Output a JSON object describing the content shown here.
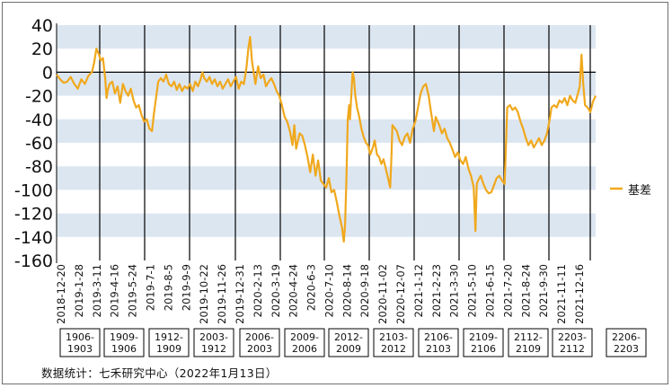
{
  "chart_data": {
    "type": "line",
    "title": "",
    "xlabel": "",
    "ylabel": "",
    "ylim": [
      -160,
      40
    ],
    "y_ticks": [
      40,
      20,
      0,
      -20,
      -40,
      -60,
      -80,
      -100,
      -120,
      -140,
      -160
    ],
    "grid": "alternating horizontal bands",
    "legend_position": "right",
    "colors": {
      "line": "#F0A81C",
      "band": "#DCE6F1",
      "divider": "#000000"
    },
    "x_tick_labels": [
      "2018-12-20",
      "2019-1-28",
      "2019-3-11",
      "2019-4-16",
      "2019-5-24",
      "2019-7-1",
      "2019-8-5",
      "2019-9-9",
      "2019-10-22",
      "2019-11-26",
      "2019-12-31",
      "2020-2-13",
      "2020-3-19",
      "2020-4-24",
      "2020-6-3",
      "2020-7-10",
      "2020-8-14",
      "2020-9-18",
      "2020-11-02",
      "2020-12-07",
      "2021-1-12",
      "2021-2-23",
      "2021-3-30",
      "2021-5-10",
      "2021-6-15",
      "2021-7-20",
      "2021-8-24",
      "2021-9-30",
      "2021-11-11",
      "2021-12-16"
    ],
    "contract_labels": [
      [
        "1906-",
        "1903"
      ],
      [
        "1909-",
        "1906"
      ],
      [
        "1912-",
        "1909"
      ],
      [
        "2003-",
        "1912"
      ],
      [
        "2006-",
        "2003"
      ],
      [
        "2009-",
        "2006"
      ],
      [
        "2012-",
        "2009"
      ],
      [
        "2103-",
        "2012"
      ],
      [
        "2106-",
        "2103"
      ],
      [
        "2109-",
        "2106"
      ],
      [
        "2112-",
        "2109"
      ],
      [
        "2203-",
        "2112"
      ],
      [
        "2206-",
        "2203"
      ]
    ],
    "series": [
      {
        "name": "基差",
        "color": "#F0A81C",
        "points": [
          [
            0,
            -2
          ],
          [
            0.8,
            -6
          ],
          [
            1.6,
            -9
          ],
          [
            2.4,
            -8
          ],
          [
            3.2,
            -4
          ],
          [
            4.0,
            -10
          ],
          [
            4.8,
            -14
          ],
          [
            5.6,
            -6
          ],
          [
            6.4,
            -10
          ],
          [
            7.2,
            -3
          ],
          [
            8.0,
            0
          ],
          [
            8.5,
            8
          ],
          [
            9.0,
            20
          ],
          [
            9.5,
            16
          ],
          [
            10.0,
            10
          ],
          [
            10.5,
            12
          ],
          [
            11.0,
            -5
          ],
          [
            11.3,
            -22
          ],
          [
            11.6,
            -15
          ],
          [
            12,
            -10
          ],
          [
            12.6,
            -8
          ],
          [
            13.2,
            -18
          ],
          [
            13.8,
            -12
          ],
          [
            14.4,
            -26
          ],
          [
            15.0,
            -10
          ],
          [
            15.6,
            -16
          ],
          [
            16.2,
            -20
          ],
          [
            16.8,
            -14
          ],
          [
            17.4,
            -24
          ],
          [
            18.0,
            -30
          ],
          [
            18.6,
            -28
          ],
          [
            19.2,
            -36
          ],
          [
            19.8,
            -42
          ],
          [
            20.4,
            -40
          ],
          [
            21.0,
            -48
          ],
          [
            21.6,
            -50
          ],
          [
            22.0,
            -36
          ],
          [
            23.0,
            -8
          ],
          [
            23.6,
            -5
          ],
          [
            24.2,
            -8
          ],
          [
            24.8,
            -2
          ],
          [
            25.4,
            -10
          ],
          [
            26.0,
            -12
          ],
          [
            26.6,
            -8
          ],
          [
            27.2,
            -15
          ],
          [
            27.8,
            -10
          ],
          [
            28.4,
            -16
          ],
          [
            29.0,
            -12
          ],
          [
            29.6,
            -14
          ],
          [
            30.2,
            -10
          ],
          [
            30.8,
            -16
          ],
          [
            31.4,
            -8
          ],
          [
            32.0,
            -12
          ],
          [
            32.6,
            -6
          ],
          [
            33.0,
            0
          ],
          [
            33.4,
            -5
          ],
          [
            34.0,
            -8
          ],
          [
            34.6,
            -4
          ],
          [
            35.2,
            -10
          ],
          [
            35.8,
            -6
          ],
          [
            36.4,
            -12
          ],
          [
            37.0,
            -8
          ],
          [
            37.6,
            -14
          ],
          [
            38.2,
            -10
          ],
          [
            38.8,
            -6
          ],
          [
            39.4,
            -12
          ],
          [
            40.0,
            -8
          ],
          [
            40.6,
            -4
          ],
          [
            41.2,
            -14
          ],
          [
            41.8,
            -8
          ],
          [
            42.4,
            -10
          ],
          [
            43.0,
            5
          ],
          [
            43.4,
            20
          ],
          [
            43.8,
            30
          ],
          [
            44.2,
            10
          ],
          [
            44.6,
            0
          ],
          [
            45.0,
            -10
          ],
          [
            45.6,
            5
          ],
          [
            46.2,
            -5
          ],
          [
            46.8,
            -2
          ],
          [
            47.4,
            -12
          ],
          [
            48.0,
            -8
          ],
          [
            48.6,
            -5
          ],
          [
            49.2,
            -10
          ],
          [
            49.8,
            -16
          ],
          [
            50.4,
            -20
          ],
          [
            51.0,
            -28
          ],
          [
            51.6,
            -38
          ],
          [
            52.2,
            -42
          ],
          [
            52.8,
            -50
          ],
          [
            53.4,
            -62
          ],
          [
            53.8,
            -45
          ],
          [
            54.2,
            -65
          ],
          [
            55.0,
            -52
          ],
          [
            55.6,
            -54
          ],
          [
            56.2,
            -62
          ],
          [
            56.8,
            -72
          ],
          [
            57.4,
            -85
          ],
          [
            58.0,
            -70
          ],
          [
            58.6,
            -88
          ],
          [
            59.2,
            -75
          ],
          [
            59.8,
            -92
          ],
          [
            60.4,
            -95
          ],
          [
            61.0,
            -98
          ],
          [
            61.6,
            -90
          ],
          [
            62.2,
            -102
          ],
          [
            62.8,
            -100
          ],
          [
            63.4,
            -110
          ],
          [
            64.0,
            -122
          ],
          [
            64.6,
            -132
          ],
          [
            65.0,
            -144
          ],
          [
            65.3,
            -130
          ],
          [
            65.6,
            -90
          ],
          [
            65.9,
            -40
          ],
          [
            66.2,
            -28
          ],
          [
            66.4,
            -40
          ],
          [
            66.7,
            -20
          ],
          [
            67.0,
            0
          ],
          [
            67.3,
            -5
          ],
          [
            67.6,
            -20
          ],
          [
            68.0,
            -30
          ],
          [
            68.5,
            -38
          ],
          [
            69.0,
            -48
          ],
          [
            69.5,
            -55
          ],
          [
            70.0,
            -60
          ],
          [
            70.5,
            -62
          ],
          [
            71.0,
            -70
          ],
          [
            71.5,
            -65
          ],
          [
            72.0,
            -58
          ],
          [
            72.5,
            -70
          ],
          [
            73.0,
            -72
          ],
          [
            73.5,
            -78
          ],
          [
            74.0,
            -74
          ],
          [
            74.5,
            -82
          ],
          [
            75.0,
            -90
          ],
          [
            75.5,
            -98
          ],
          [
            75.8,
            -70
          ],
          [
            76.0,
            -45
          ],
          [
            77.0,
            -50
          ],
          [
            77.6,
            -58
          ],
          [
            78.2,
            -62
          ],
          [
            78.8,
            -55
          ],
          [
            79.4,
            -52
          ],
          [
            80.0,
            -60
          ],
          [
            80.6,
            -48
          ],
          [
            81.2,
            -42
          ],
          [
            81.8,
            -30
          ],
          [
            82.4,
            -18
          ],
          [
            83.0,
            -12
          ],
          [
            83.6,
            -10
          ],
          [
            84.2,
            -20
          ],
          [
            84.8,
            -35
          ],
          [
            85.4,
            -50
          ],
          [
            85.8,
            -38
          ],
          [
            86.6,
            -45
          ],
          [
            87.2,
            -52
          ],
          [
            87.8,
            -48
          ],
          [
            88.4,
            -56
          ],
          [
            89.0,
            -60
          ],
          [
            89.6,
            -66
          ],
          [
            90.2,
            -72
          ],
          [
            90.8,
            -68
          ],
          [
            91.4,
            -75
          ],
          [
            92.0,
            -78
          ],
          [
            92.6,
            -72
          ],
          [
            93.2,
            -82
          ],
          [
            93.8,
            -88
          ],
          [
            94.4,
            -98
          ],
          [
            94.8,
            -135
          ],
          [
            95.1,
            -95
          ],
          [
            95.4,
            -92
          ],
          [
            96.0,
            -88
          ],
          [
            96.6,
            -95
          ],
          [
            97.2,
            -100
          ],
          [
            97.8,
            -103
          ],
          [
            98.4,
            -102
          ],
          [
            99.0,
            -96
          ],
          [
            99.6,
            -90
          ],
          [
            100.2,
            -88
          ],
          [
            100.8,
            -92
          ],
          [
            101.4,
            -95
          ],
          [
            102.0,
            -30
          ],
          [
            102.6,
            -28
          ],
          [
            103.2,
            -32
          ],
          [
            103.8,
            -30
          ],
          [
            104.4,
            -34
          ],
          [
            105.0,
            -42
          ],
          [
            105.6,
            -48
          ],
          [
            106.2,
            -56
          ],
          [
            106.8,
            -62
          ],
          [
            107.4,
            -58
          ],
          [
            108.0,
            -64
          ],
          [
            108.6,
            -60
          ],
          [
            109.2,
            -56
          ],
          [
            109.8,
            -62
          ],
          [
            110.4,
            -58
          ],
          [
            111.0,
            -52
          ],
          [
            111.6,
            -40
          ],
          [
            112.0,
            -30
          ],
          [
            112.6,
            -28
          ],
          [
            113.2,
            -30
          ],
          [
            113.8,
            -24
          ],
          [
            114.4,
            -26
          ],
          [
            115.0,
            -22
          ],
          [
            115.6,
            -28
          ],
          [
            116.2,
            -20
          ],
          [
            116.8,
            -24
          ],
          [
            117.4,
            -26
          ],
          [
            118.0,
            -18
          ],
          [
            118.4,
            -12
          ],
          [
            118.8,
            15
          ],
          [
            119.2,
            -10
          ],
          [
            119.6,
            -28
          ],
          [
            120.2,
            -30
          ],
          [
            120.8,
            -34
          ],
          [
            121.4,
            -25
          ],
          [
            122.0,
            -20
          ]
        ]
      }
    ]
  }
}
